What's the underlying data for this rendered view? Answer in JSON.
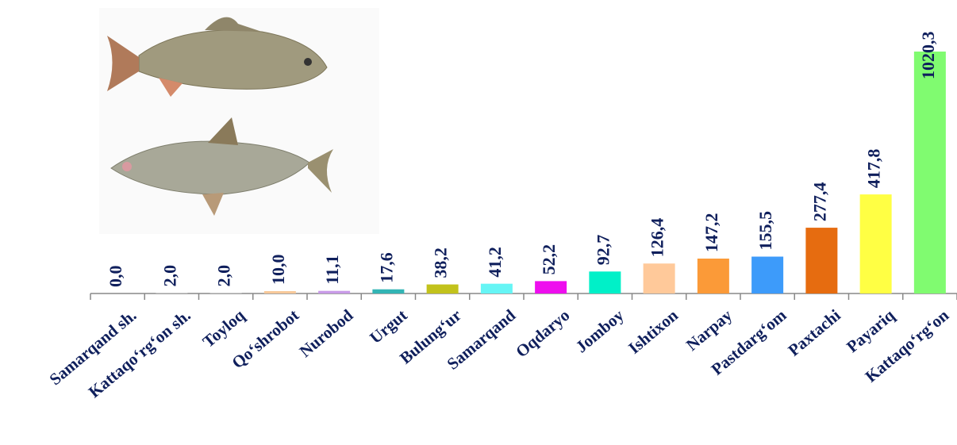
{
  "chart_data": {
    "type": "bar",
    "categories": [
      "Samarqand sh.",
      "Kattaqo‘rg‘on sh.",
      "Toyloq",
      "Qo‘shrobot",
      "Nurobod",
      "Urgut",
      "Bulung‘ur",
      "Samarqand",
      "Oqdaryo",
      "Jomboy",
      "Ishtixon",
      "Narpay",
      "Pastdarg‘om",
      "Paxtachi",
      "Payariq",
      "Kattaqo‘rg‘on"
    ],
    "values": [
      0,
      2,
      2,
      10,
      11.1,
      17.6,
      38.2,
      41.2,
      52.2,
      92.7,
      126.4,
      147.2,
      155.5,
      277.4,
      417.8,
      1020.3
    ],
    "value_labels": [
      "0,0",
      "2,0",
      "2,0",
      "10,0",
      "11,1",
      "17,6",
      "38,2",
      "41,2",
      "52,2",
      "92,7",
      "126,4",
      "147,2",
      "155,5",
      "277,4",
      "417,8",
      "1020,3"
    ],
    "colors": [
      "#c8c8c8",
      "#c8c8c8",
      "#c8c8c8",
      "#f7c99a",
      "#c99be8",
      "#33b5b5",
      "#c2c21c",
      "#66f5f5",
      "#ee0eee",
      "#00f0c8",
      "#ffc99a",
      "#fb9a38",
      "#3d9bfa",
      "#e66c10",
      "#ffff44",
      "#80fb70"
    ]
  }
}
